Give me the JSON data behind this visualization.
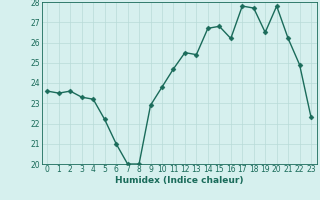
{
  "x": [
    0,
    1,
    2,
    3,
    4,
    5,
    6,
    7,
    8,
    9,
    10,
    11,
    12,
    13,
    14,
    15,
    16,
    17,
    18,
    19,
    20,
    21,
    22,
    23
  ],
  "y": [
    23.6,
    23.5,
    23.6,
    23.3,
    23.2,
    22.2,
    21.0,
    20.0,
    20.0,
    22.9,
    23.8,
    24.7,
    25.5,
    25.4,
    26.7,
    26.8,
    26.2,
    27.8,
    27.7,
    26.5,
    27.8,
    26.2,
    24.9,
    22.3
  ],
  "line_color": "#1a6b5a",
  "marker_color": "#1a6b5a",
  "bg_color": "#d6f0ee",
  "grid_color": "#b8dbd8",
  "xlabel": "Humidex (Indice chaleur)",
  "ylim": [
    20,
    28
  ],
  "xlim_min": -0.5,
  "xlim_max": 23.5,
  "yticks": [
    20,
    21,
    22,
    23,
    24,
    25,
    26,
    27,
    28
  ],
  "xticks": [
    0,
    1,
    2,
    3,
    4,
    5,
    6,
    7,
    8,
    9,
    10,
    11,
    12,
    13,
    14,
    15,
    16,
    17,
    18,
    19,
    20,
    21,
    22,
    23
  ],
  "tick_color": "#1a6b5a",
  "label_color": "#1a6b5a",
  "spine_color": "#1a6b5a",
  "marker_size": 2.5,
  "line_width": 1.0,
  "font_size_tick": 5.5,
  "font_size_label": 6.5
}
